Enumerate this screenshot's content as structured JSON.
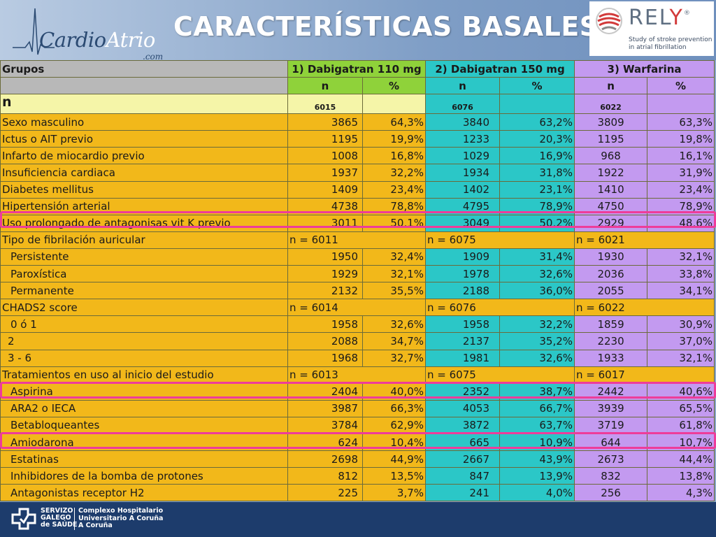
{
  "header": {
    "logo_main": "Cardio",
    "logo_accent": "Atrio",
    "logo_sub": ".com",
    "title": "CARACTERÍSTICAS BASALES",
    "rely_word_a": "REL",
    "rely_word_b": "Y",
    "rely_reg": "®",
    "rely_tagline_1": "Study of stroke prevention",
    "rely_tagline_2": "in atrial fibrillation",
    "colors": {
      "title": "#ffffff",
      "rely_accent": "#d23a3a"
    }
  },
  "table": {
    "groups_label": "Grupos",
    "group_headers": [
      "1) Dabigatran 110 mg",
      "2) Dabigatran 150 mg",
      "3) Warfarina"
    ],
    "sub_headers": [
      "n",
      "%",
      "n",
      "%",
      "n",
      "%"
    ],
    "n_label": "n",
    "n_values": [
      "6015",
      "6076",
      "6022"
    ],
    "rows_a": [
      {
        "label": "Sexo masculino",
        "v": [
          "3865",
          "64,3%",
          "3840",
          "63,2%",
          "3809",
          "63,3%"
        ]
      },
      {
        "label": "Ictus o AIT previo",
        "v": [
          "1195",
          "19,9%",
          "1233",
          "20,3%",
          "1195",
          "19,8%"
        ]
      },
      {
        "label": "Infarto de miocardio previo",
        "v": [
          "1008",
          "16,8%",
          "1029",
          "16,9%",
          "968",
          "16,1%"
        ]
      },
      {
        "label": "Insuficiencia cardiaca",
        "v": [
          "1937",
          "32,2%",
          "1934",
          "31,8%",
          "1922",
          "31,9%"
        ]
      },
      {
        "label": "Diabetes mellitus",
        "v": [
          "1409",
          "23,4%",
          "1402",
          "23,1%",
          "1410",
          "23,4%"
        ]
      },
      {
        "label": "Hipertensión arterial",
        "v": [
          "4738",
          "78,8%",
          "4795",
          "78,9%",
          "4750",
          "78,9%"
        ]
      },
      {
        "label": "Uso prolongado de antagonisas vit K previo",
        "v": [
          "3011",
          "50,1%",
          "3049",
          "50,2%",
          "2929",
          "48,6%"
        ]
      }
    ],
    "section_af": {
      "label": "Tipo de fibrilación auricular",
      "n": [
        "n = 6011",
        "n = 6075",
        "n = 6021"
      ]
    },
    "rows_af": [
      {
        "label": "Persistente",
        "v": [
          "1950",
          "32,4%",
          "1909",
          "31,4%",
          "1930",
          "32,1%"
        ]
      },
      {
        "label": "Paroxística",
        "v": [
          "1929",
          "32,1%",
          "1978",
          "32,6%",
          "2036",
          "33,8%"
        ]
      },
      {
        "label": "Permanente",
        "v": [
          "2132",
          "35,5%",
          "2188",
          "36,0%",
          "2055",
          "34,1%"
        ]
      }
    ],
    "section_chads": {
      "label": "CHADS2 score",
      "n": [
        "n = 6014",
        "n = 6076",
        "n = 6022"
      ]
    },
    "rows_chads": [
      {
        "label": "0 ó 1",
        "v": [
          "1958",
          "32,6%",
          "1958",
          "32,2%",
          "1859",
          "30,9%"
        ]
      },
      {
        "label": "2",
        "v": [
          "2088",
          "34,7%",
          "2137",
          "35,2%",
          "2230",
          "37,0%"
        ]
      },
      {
        "label": "3 - 6",
        "v": [
          "1968",
          "32,7%",
          "1981",
          "32,6%",
          "1933",
          "32,1%"
        ]
      }
    ],
    "section_tx": {
      "label": "Tratamientos en uso al inicio del estudio",
      "n": [
        "n = 6013",
        "n = 6075",
        "n = 6017"
      ]
    },
    "rows_tx": [
      {
        "label": "Aspirina",
        "v": [
          "2404",
          "40,0%",
          "2352",
          "38,7%",
          "2442",
          "40,6%"
        ]
      },
      {
        "label": "ARA2 o IECA",
        "v": [
          "3987",
          "66,3%",
          "4053",
          "66,7%",
          "3939",
          "65,5%"
        ]
      },
      {
        "label": "Betabloqueantes",
        "v": [
          "3784",
          "62,9%",
          "3872",
          "63,7%",
          "3719",
          "61,8%"
        ]
      },
      {
        "label": "Amiodarona",
        "v": [
          "624",
          "10,4%",
          "665",
          "10,9%",
          "644",
          "10,7%"
        ]
      },
      {
        "label": "Estatinas",
        "v": [
          "2698",
          "44,9%",
          "2667",
          "43,9%",
          "2673",
          "44,4%"
        ]
      },
      {
        "label": "Inhibidores de la bomba de protones",
        "v": [
          "812",
          "13,5%",
          "847",
          "13,9%",
          "832",
          "13,8%"
        ]
      },
      {
        "label": "Antagonistas receptor H2",
        "v": [
          "225",
          "3,7%",
          "241",
          "4,0%",
          "256",
          "4,3%"
        ]
      }
    ],
    "colors": {
      "group1": "#f2b81a",
      "group2": "#2bc7c7",
      "group3": "#c39af0",
      "highlight": "#ee3c9a"
    }
  },
  "footer": {
    "sergas_1": "SERVIZO",
    "sergas_2": "GALEGO",
    "sergas_3": "de SAÚDE",
    "hospital_1": "Complexo Hospitalario",
    "hospital_2": "Universitario A Coruña",
    "hospital_3": "A Coruña"
  }
}
